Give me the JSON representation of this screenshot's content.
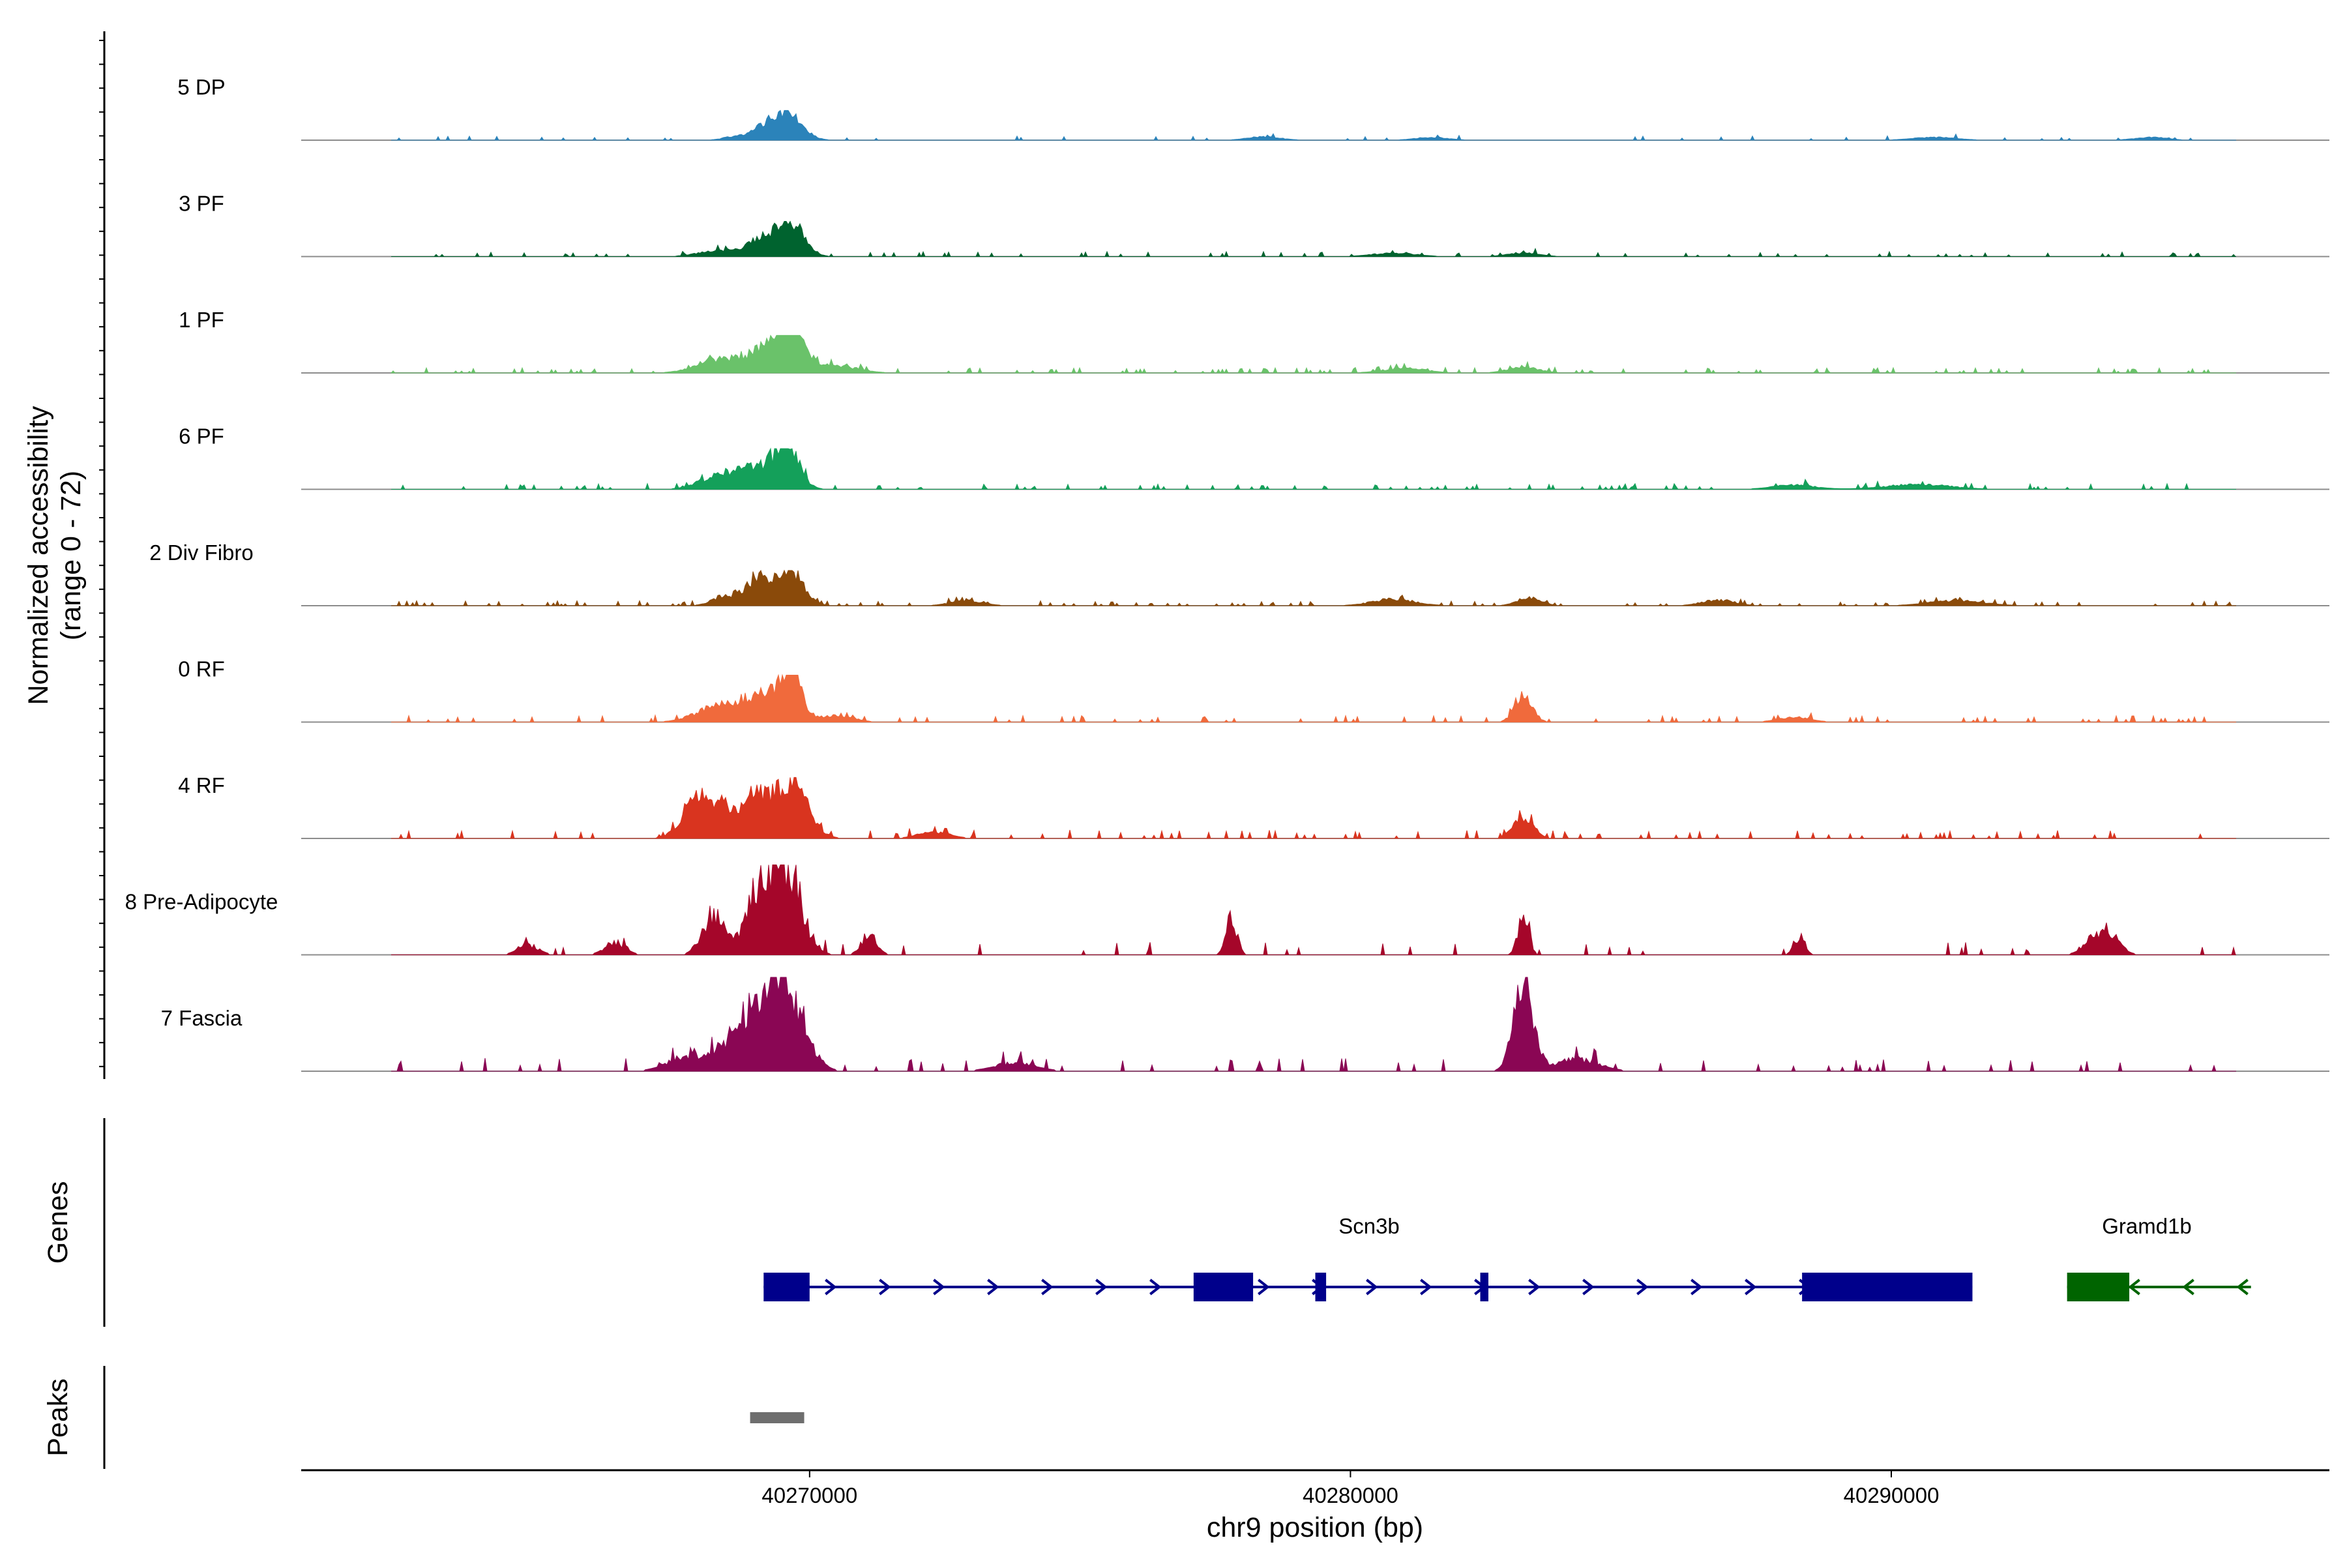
{
  "chart_data": {
    "type": "area",
    "title": "",
    "xlabel": "chr9 position (bp)",
    "ylabel_line1": "Normalized accessibility",
    "ylabel_line2": "(range 0 - 72)",
    "genes_label": "Genes",
    "peaks_label": "Peaks",
    "x_range": [
      40260600,
      40298100
    ],
    "y_range": [
      0,
      72
    ],
    "x_ticks": [
      {
        "value": 40270000,
        "label": "40270000"
      },
      {
        "value": 40280000,
        "label": "40280000"
      },
      {
        "value": 40290000,
        "label": "40290000"
      }
    ],
    "tracks": [
      {
        "name": "5 DP",
        "color": "#2b83ba",
        "scale": 0.38,
        "base": 0.25,
        "noise": 0.8,
        "peaks": [
          [
            40269600,
            0.95,
            260
          ],
          [
            40269150,
            0.4,
            230
          ],
          [
            40268600,
            0.12,
            200
          ],
          [
            40278400,
            0.12,
            300
          ],
          [
            40281500,
            0.1,
            300
          ],
          [
            40290800,
            0.1,
            400
          ],
          [
            40294800,
            0.1,
            300
          ]
        ]
      },
      {
        "name": "3 PF",
        "color": "#00632f",
        "scale": 0.45,
        "base": 0.35,
        "noise": 1.0,
        "peaks": [
          [
            40269650,
            1.0,
            240
          ],
          [
            40269100,
            0.5,
            260
          ],
          [
            40268300,
            0.18,
            350
          ],
          [
            40280800,
            0.1,
            400
          ],
          [
            40283200,
            0.1,
            300
          ]
        ]
      },
      {
        "name": "1 PF",
        "color": "#6ac26a",
        "scale": 0.48,
        "base": 0.6,
        "noise": 1.0,
        "peaks": [
          [
            40269650,
            1.0,
            260
          ],
          [
            40269250,
            0.6,
            380
          ],
          [
            40268300,
            0.35,
            400
          ],
          [
            40270500,
            0.18,
            400
          ],
          [
            40283200,
            0.14,
            300
          ],
          [
            40281000,
            0.12,
            400
          ]
        ]
      },
      {
        "name": "6 PF",
        "color": "#14a05a",
        "scale": 0.52,
        "base": 0.45,
        "noise": 1.0,
        "peaks": [
          [
            40269600,
            1.0,
            200
          ],
          [
            40269100,
            0.55,
            400
          ],
          [
            40268300,
            0.3,
            350
          ],
          [
            40290500,
            0.12,
            600
          ],
          [
            40288200,
            0.1,
            400
          ]
        ]
      },
      {
        "name": "2 Div Fibro",
        "color": "#8a4a0a",
        "scale": 0.45,
        "base": 0.6,
        "noise": 1.0,
        "peaks": [
          [
            40269650,
            1.0,
            240
          ],
          [
            40269050,
            0.75,
            250
          ],
          [
            40268400,
            0.25,
            220
          ],
          [
            40283300,
            0.22,
            220
          ],
          [
            40280800,
            0.18,
            400
          ],
          [
            40286800,
            0.16,
            300
          ],
          [
            40291200,
            0.15,
            500
          ],
          [
            40272900,
            0.14,
            300
          ]
        ]
      },
      {
        "name": "0 RF",
        "color": "#f06a3c",
        "scale": 0.6,
        "base": 0.5,
        "noise": 1.0,
        "peaks": [
          [
            40269650,
            1.0,
            180
          ],
          [
            40269150,
            0.55,
            380
          ],
          [
            40268300,
            0.32,
            400
          ],
          [
            40283200,
            0.58,
            160
          ],
          [
            40270500,
            0.15,
            300
          ],
          [
            40288200,
            0.1,
            300
          ]
        ]
      },
      {
        "name": "4 RF",
        "color": "#d9341f",
        "scale": 0.78,
        "base": 0.45,
        "noise": 1.0,
        "peaks": [
          [
            40269650,
            0.95,
            300
          ],
          [
            40269000,
            0.65,
            220
          ],
          [
            40268000,
            0.68,
            300
          ],
          [
            40268500,
            0.3,
            200
          ],
          [
            40283200,
            0.35,
            180
          ],
          [
            40272300,
            0.1,
            300
          ]
        ]
      },
      {
        "name": "8 Pre-Adipocyte",
        "color": "#a5062a",
        "scale": 1.15,
        "base": 0.18,
        "noise": 1.6,
        "peaks": [
          [
            40269500,
            0.95,
            300
          ],
          [
            40268200,
            0.38,
            200
          ],
          [
            40269000,
            0.42,
            250
          ],
          [
            40277800,
            0.38,
            100
          ],
          [
            40283200,
            0.38,
            100
          ],
          [
            40271100,
            0.18,
            150
          ],
          [
            40293900,
            0.25,
            250
          ],
          [
            40288300,
            0.18,
            100
          ],
          [
            40264800,
            0.1,
            200
          ],
          [
            40266400,
            0.12,
            200
          ]
        ]
      },
      {
        "name": "7 Fascia",
        "color": "#8a0654",
        "scale": 1.2,
        "base": 0.3,
        "noise": 1.2,
        "peaks": [
          [
            40269500,
            0.95,
            350
          ],
          [
            40268800,
            0.45,
            350
          ],
          [
            40283200,
            0.85,
            180
          ],
          [
            40267800,
            0.15,
            400
          ],
          [
            40284200,
            0.12,
            400
          ],
          [
            40273800,
            0.08,
            400
          ]
        ]
      }
    ],
    "genes": [
      {
        "name": "Scn3b",
        "strand": "+",
        "color": "#00008b",
        "start": 40269150,
        "end": 40291500,
        "exons": [
          [
            40269150,
            40270000
          ],
          [
            40277100,
            40278200
          ],
          [
            40279350,
            40279550
          ],
          [
            40282400,
            40282550
          ],
          [
            40288350,
            40291500
          ]
        ]
      },
      {
        "name": "Gramd1b",
        "strand": "-",
        "color": "#006400",
        "start": 40293250,
        "end": 40296650,
        "exons": [
          [
            40293250,
            40294400
          ]
        ]
      }
    ],
    "peaks": [
      {
        "start": 40268900,
        "end": 40269900
      }
    ]
  }
}
